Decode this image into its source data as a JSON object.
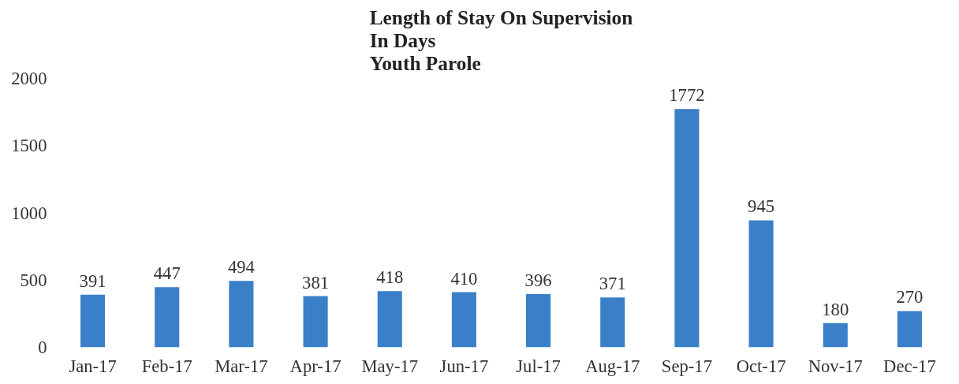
{
  "chart_data": {
    "type": "bar",
    "title": "Length of Stay On Supervision\nIn Days\nYouth Parole",
    "categories": [
      "Jan-17",
      "Feb-17",
      "Mar-17",
      "Apr-17",
      "May-17",
      "Jun-17",
      "Jul-17",
      "Aug-17",
      "Sep-17",
      "Oct-17",
      "Nov-17",
      "Dec-17"
    ],
    "values": [
      391,
      447,
      494,
      381,
      418,
      410,
      396,
      371,
      1772,
      945,
      180,
      270
    ],
    "color": "#3a7fc8",
    "ylim": [
      0,
      2000
    ],
    "yticks": [
      0,
      500,
      1000,
      1500,
      2000
    ],
    "grid": false,
    "data_labels": true
  }
}
